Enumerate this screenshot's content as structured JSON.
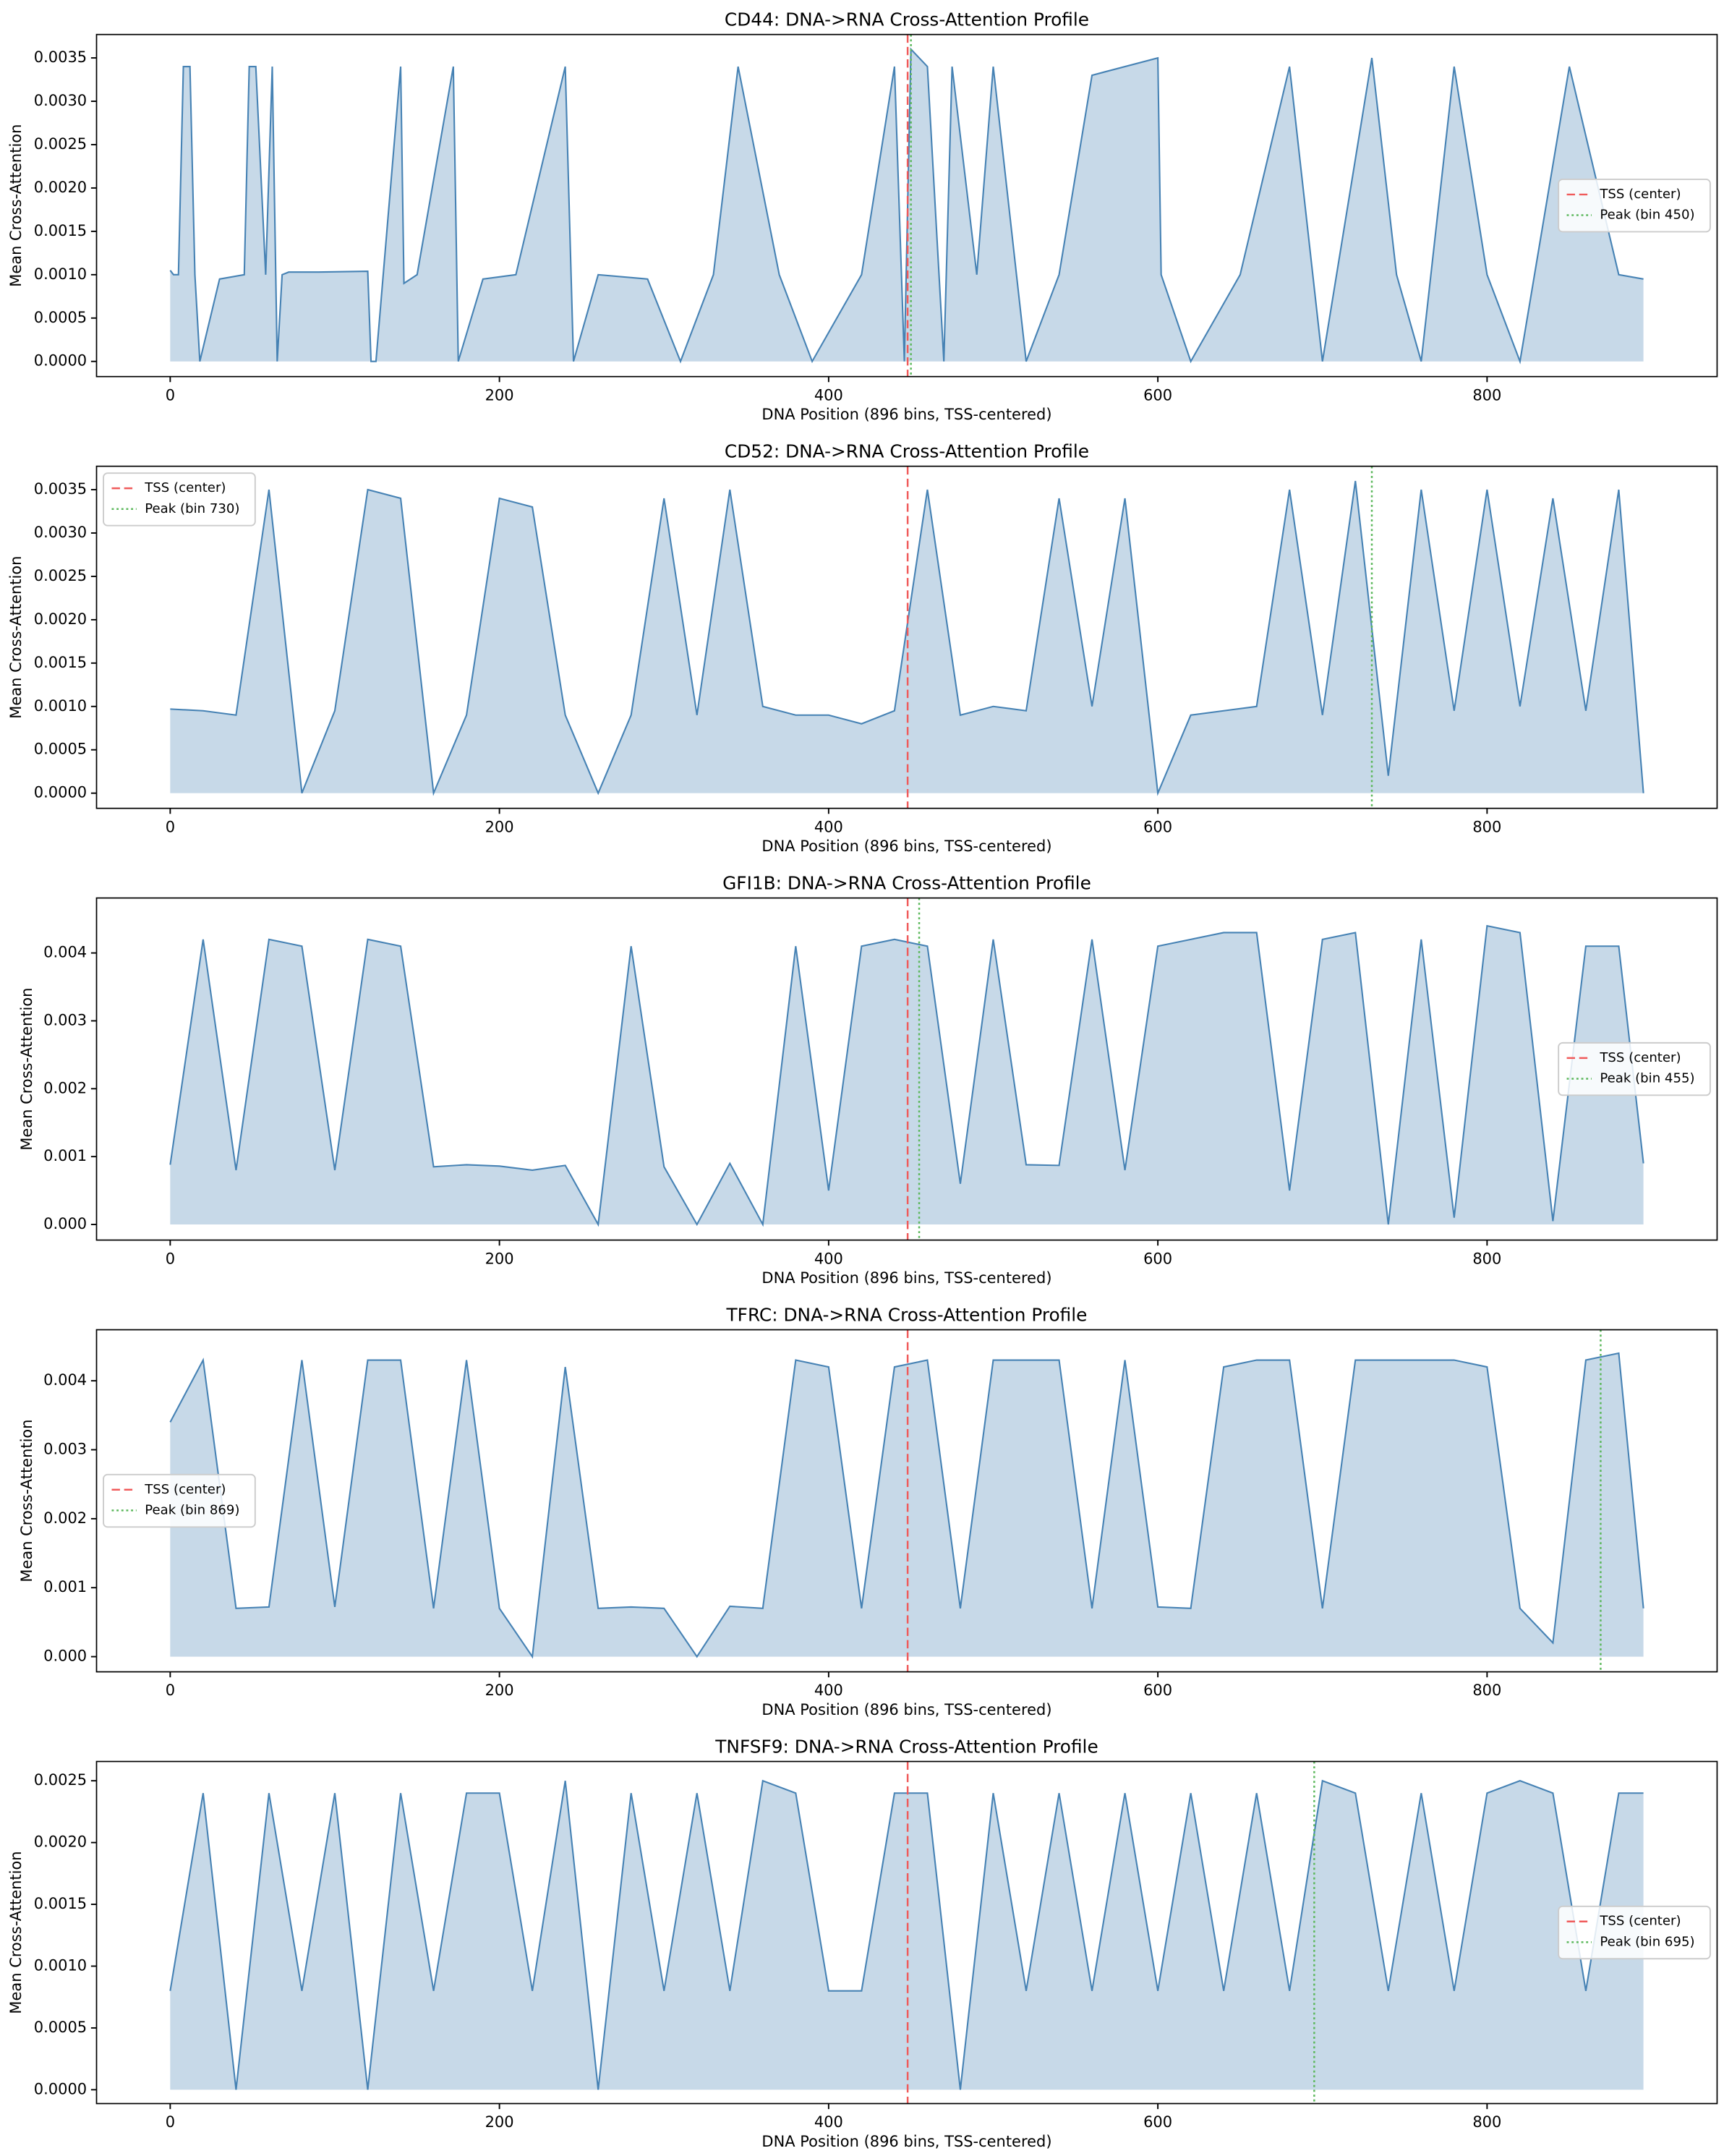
{
  "chart_data": [
    {
      "type": "line",
      "title": "CD44: DNA->RNA Cross-Attention Profile",
      "xlabel": "DNA Position (896 bins, TSS-centered)",
      "ylabel": "Mean Cross-Attention",
      "x": [
        0,
        2,
        5,
        8,
        12,
        15,
        18,
        30,
        45,
        48,
        52,
        58,
        62,
        65,
        68,
        72,
        90,
        120,
        122,
        125,
        140,
        142,
        150,
        172,
        175,
        190,
        210,
        240,
        245,
        260,
        290,
        310,
        330,
        345,
        370,
        390,
        420,
        440,
        446,
        450,
        455,
        460,
        470,
        475,
        490,
        500,
        520,
        540,
        560,
        600,
        602,
        620,
        650,
        680,
        700,
        730,
        745,
        760,
        780,
        800,
        820,
        850,
        880,
        895
      ],
      "values": [
        0.00105,
        0.001,
        0.001,
        0.0034,
        0.0034,
        0.001,
        0.0,
        0.00095,
        0.001,
        0.0034,
        0.0034,
        0.001,
        0.0034,
        0.0,
        0.001,
        0.00103,
        0.00103,
        0.00104,
        0.0,
        0.0,
        0.0034,
        0.0009,
        0.001,
        0.0034,
        0.0,
        0.00095,
        0.001,
        0.0034,
        0.0,
        0.001,
        0.00095,
        0.0,
        0.001,
        0.0034,
        0.001,
        0.0,
        0.001,
        0.0034,
        0.0,
        0.0036,
        0.0035,
        0.0034,
        0.0,
        0.0034,
        0.001,
        0.0034,
        0.0,
        0.001,
        0.0033,
        0.0035,
        0.001,
        0.0,
        0.001,
        0.0034,
        0.0,
        0.0035,
        0.001,
        0.0,
        0.0034,
        0.001,
        0.0,
        0.0034,
        0.001,
        0.00095
      ],
      "color": "#4682b4",
      "fill": true,
      "xlim": [
        -44.75,
        939.75
      ],
      "xticks": [
        0,
        200,
        400,
        600,
        800
      ],
      "ylim": [
        -0.000175,
        0.00377
      ],
      "yticks": [
        {
          "value": 0,
          "label": "0.0000"
        },
        0.0005,
        {
          "value": 0.001,
          "label": "0.0010"
        },
        0.0015,
        {
          "value": 0.002,
          "label": "0.0020"
        },
        0.0025,
        {
          "value": 0.003,
          "label": "0.0030"
        },
        0.0035
      ],
      "vlines": [
        {
          "x": 448,
          "name": "TSS (center)",
          "color": "#f05a5a",
          "style": "dashed"
        },
        {
          "x": 450,
          "name": "Peak (bin 450)",
          "color": "#5cb85c",
          "style": "dotted"
        }
      ],
      "legend": "center right"
    },
    {
      "type": "line",
      "title": "CD52: DNA->RNA Cross-Attention Profile",
      "xlabel": "DNA Position (896 bins, TSS-centered)",
      "ylabel": "Mean Cross-Attention",
      "x": [
        0,
        20,
        40,
        60,
        80,
        100,
        120,
        140,
        160,
        180,
        200,
        220,
        240,
        260,
        280,
        300,
        320,
        340,
        360,
        380,
        400,
        420,
        440,
        460,
        480,
        500,
        520,
        540,
        560,
        580,
        600,
        620,
        640,
        660,
        680,
        700,
        720,
        740,
        760,
        780,
        800,
        820,
        840,
        860,
        880,
        895
      ],
      "values": [
        0.00097,
        0.00095,
        0.0009,
        0.0035,
        0.0,
        0.00095,
        0.0035,
        0.0034,
        0.0,
        0.0009,
        0.0034,
        0.0033,
        0.0009,
        0.0,
        0.0009,
        0.0034,
        0.0009,
        0.0035,
        0.001,
        0.0009,
        0.0009,
        0.0008,
        0.00095,
        0.0035,
        0.0009,
        0.001,
        0.00095,
        0.0034,
        0.001,
        0.0034,
        0.0,
        0.0009,
        0.00095,
        0.001,
        0.0035,
        0.0009,
        0.0036,
        0.0002,
        0.0035,
        0.00095,
        0.0035,
        0.001,
        0.0034,
        0.00095,
        0.0035,
        0.0
      ],
      "color": "#4682b4",
      "fill": true,
      "xlim": [
        -44.75,
        939.75
      ],
      "xticks": [
        0,
        200,
        400,
        600,
        800
      ],
      "ylim": [
        -0.000175,
        0.00377
      ],
      "yticks": [
        {
          "value": 0,
          "label": "0.0000"
        },
        0.0005,
        {
          "value": 0.001,
          "label": "0.0010"
        },
        0.0015,
        {
          "value": 0.002,
          "label": "0.0020"
        },
        0.0025,
        {
          "value": 0.003,
          "label": "0.0030"
        },
        0.0035
      ],
      "vlines": [
        {
          "x": 448,
          "name": "TSS (center)",
          "color": "#f05a5a",
          "style": "dashed"
        },
        {
          "x": 730,
          "name": "Peak (bin 730)",
          "color": "#5cb85c",
          "style": "dotted"
        }
      ],
      "legend": "upper left"
    },
    {
      "type": "line",
      "title": "GFI1B: DNA->RNA Cross-Attention Profile",
      "xlabel": "DNA Position (896 bins, TSS-centered)",
      "ylabel": "Mean Cross-Attention",
      "x": [
        0,
        20,
        40,
        60,
        80,
        100,
        120,
        140,
        160,
        180,
        200,
        220,
        240,
        260,
        280,
        300,
        320,
        340,
        360,
        380,
        400,
        420,
        440,
        460,
        480,
        500,
        520,
        540,
        560,
        580,
        600,
        620,
        640,
        660,
        680,
        700,
        720,
        740,
        760,
        780,
        800,
        820,
        840,
        860,
        880,
        895
      ],
      "values": [
        0.00088,
        0.0042,
        0.0008,
        0.0042,
        0.0041,
        0.0008,
        0.0042,
        0.0041,
        0.00085,
        0.00088,
        0.00086,
        0.0008,
        0.00087,
        0.0,
        0.0041,
        0.00085,
        0.0,
        0.0009,
        0.0,
        0.0041,
        0.0005,
        0.0041,
        0.0042,
        0.0041,
        0.0006,
        0.0042,
        0.00088,
        0.00087,
        0.0042,
        0.0008,
        0.0041,
        0.0042,
        0.0043,
        0.0043,
        0.0005,
        0.0042,
        0.0043,
        0.0,
        0.0042,
        0.0001,
        0.0044,
        0.0043,
        5e-05,
        0.0041,
        0.0041,
        0.0009
      ],
      "color": "#4682b4",
      "fill": true,
      "xlim": [
        -44.75,
        939.75
      ],
      "xticks": [
        0,
        200,
        400,
        600,
        800
      ],
      "ylim": [
        -0.00023,
        0.00481
      ],
      "yticks": [
        {
          "value": 0,
          "label": "0.000"
        },
        0.001,
        0.002,
        0.003,
        0.004
      ],
      "vlines": [
        {
          "x": 448,
          "name": "TSS (center)",
          "color": "#f05a5a",
          "style": "dashed"
        },
        {
          "x": 455,
          "name": "Peak (bin 455)",
          "color": "#5cb85c",
          "style": "dotted"
        }
      ],
      "legend": "center right"
    },
    {
      "type": "line",
      "title": "TFRC: DNA->RNA Cross-Attention Profile",
      "xlabel": "DNA Position (896 bins, TSS-centered)",
      "ylabel": "Mean Cross-Attention",
      "x": [
        0,
        20,
        40,
        60,
        80,
        100,
        120,
        140,
        160,
        180,
        200,
        220,
        240,
        260,
        280,
        300,
        320,
        340,
        360,
        380,
        400,
        420,
        440,
        460,
        480,
        500,
        520,
        540,
        560,
        580,
        600,
        620,
        640,
        660,
        680,
        700,
        720,
        740,
        760,
        780,
        800,
        820,
        840,
        860,
        880,
        895
      ],
      "values": [
        0.0034,
        0.0043,
        0.0007,
        0.00072,
        0.0043,
        0.00072,
        0.0043,
        0.0043,
        0.0007,
        0.0043,
        0.0007,
        0.0,
        0.0042,
        0.0007,
        0.00072,
        0.0007,
        0.0,
        0.00073,
        0.0007,
        0.0043,
        0.0042,
        0.0007,
        0.0042,
        0.0043,
        0.0007,
        0.0043,
        0.0043,
        0.0043,
        0.0007,
        0.0043,
        0.00072,
        0.0007,
        0.0042,
        0.0043,
        0.0043,
        0.0007,
        0.0043,
        0.0043,
        0.0043,
        0.0043,
        0.0042,
        0.0007,
        0.0002,
        0.0043,
        0.0044,
        0.0007
      ],
      "color": "#4682b4",
      "fill": true,
      "xlim": [
        -44.75,
        939.75
      ],
      "xticks": [
        0,
        200,
        400,
        600,
        800
      ],
      "ylim": [
        -0.00022,
        0.00474
      ],
      "yticks": [
        {
          "value": 0,
          "label": "0.000"
        },
        0.001,
        0.002,
        0.003,
        0.004
      ],
      "vlines": [
        {
          "x": 448,
          "name": "TSS (center)",
          "color": "#f05a5a",
          "style": "dashed"
        },
        {
          "x": 869,
          "name": "Peak (bin 869)",
          "color": "#5cb85c",
          "style": "dotted"
        }
      ],
      "legend": "center left"
    },
    {
      "type": "line",
      "title": "TNFSF9: DNA->RNA Cross-Attention Profile",
      "xlabel": "DNA Position (896 bins, TSS-centered)",
      "ylabel": "Mean Cross-Attention",
      "x": [
        0,
        20,
        40,
        60,
        80,
        100,
        120,
        140,
        160,
        180,
        200,
        220,
        240,
        260,
        280,
        300,
        320,
        340,
        360,
        380,
        400,
        420,
        440,
        460,
        480,
        500,
        520,
        540,
        560,
        580,
        600,
        620,
        640,
        660,
        680,
        700,
        720,
        740,
        760,
        780,
        800,
        820,
        840,
        860,
        880,
        895
      ],
      "values": [
        0.0008,
        0.0024,
        0.0,
        0.0024,
        0.0008,
        0.0024,
        0.0,
        0.0024,
        0.0008,
        0.0024,
        0.0024,
        0.0008,
        0.0025,
        0.0,
        0.0024,
        0.0008,
        0.0024,
        0.0008,
        0.0025,
        0.0024,
        0.0008,
        0.0008,
        0.0024,
        0.0024,
        0.0,
        0.0024,
        0.0008,
        0.0024,
        0.0008,
        0.0024,
        0.0008,
        0.0024,
        0.0008,
        0.0024,
        0.0008,
        0.0025,
        0.0024,
        0.0008,
        0.0024,
        0.0008,
        0.0024,
        0.0025,
        0.0024,
        0.0008,
        0.0024,
        0.0024
      ],
      "color": "#4682b4",
      "fill": true,
      "xlim": [
        -44.75,
        939.75
      ],
      "xticks": [
        0,
        200,
        400,
        600,
        800
      ],
      "ylim": [
        -0.000112,
        0.002656
      ],
      "yticks": [
        {
          "value": 0,
          "label": "0.0000"
        },
        0.0005,
        {
          "value": 0.001,
          "label": "0.0010"
        },
        0.0015,
        {
          "value": 0.002,
          "label": "0.0020"
        },
        0.0025
      ],
      "vlines": [
        {
          "x": 448,
          "name": "TSS (center)",
          "color": "#f05a5a",
          "style": "dashed"
        },
        {
          "x": 695,
          "name": "Peak (bin 695)",
          "color": "#5cb85c",
          "style": "dotted"
        }
      ],
      "legend": "center right"
    }
  ]
}
